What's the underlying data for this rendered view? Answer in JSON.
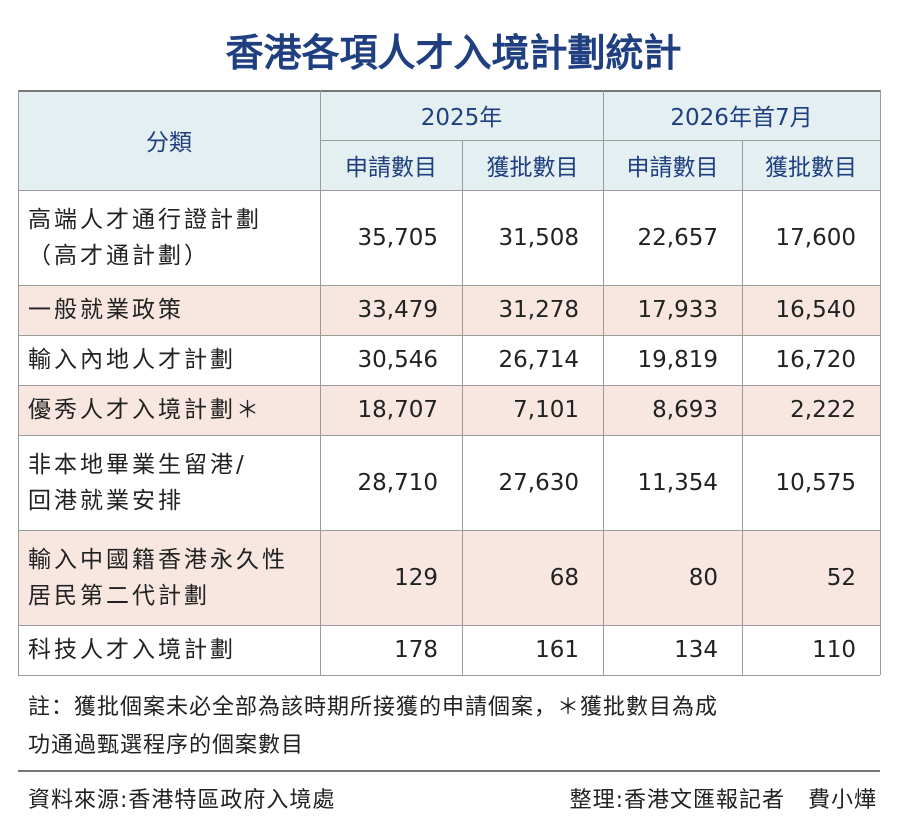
{
  "title": "香港各項人才入境計劃統計",
  "table": {
    "header": {
      "category": "分類",
      "groups": [
        "2025年",
        "2026年首7月"
      ],
      "subcolumns": [
        "申請數目",
        "獲批數目",
        "申請數目",
        "獲批數目"
      ]
    },
    "rows": [
      {
        "label": [
          "高端人才通行證計劃",
          "（高才通計劃）"
        ],
        "values": [
          "35,705",
          "31,508",
          "22,657",
          "17,600"
        ]
      },
      {
        "label": [
          "一般就業政策"
        ],
        "values": [
          "33,479",
          "31,278",
          "17,933",
          "16,540"
        ]
      },
      {
        "label": [
          "輸入內地人才計劃"
        ],
        "values": [
          "30,546",
          "26,714",
          "19,819",
          "16,720"
        ]
      },
      {
        "label": [
          "優秀人才入境計劃＊"
        ],
        "values": [
          "18,707",
          "7,101",
          "8,693",
          "2,222"
        ]
      },
      {
        "label": [
          "非本地畢業生留港/",
          "回港就業安排"
        ],
        "values": [
          "28,710",
          "27,630",
          "11,354",
          "10,575"
        ]
      },
      {
        "label": [
          "輸入中國籍香港永久性",
          "居民第二代計劃"
        ],
        "values": [
          "129",
          "68",
          "80",
          "52"
        ]
      },
      {
        "label": [
          "科技人才入境計劃"
        ],
        "values": [
          "178",
          "161",
          "134",
          "110"
        ]
      }
    ]
  },
  "note": [
    "註：獲批個案未必全部為該時期所接獲的申請個案，＊獲批數目為成",
    "功通過甄選程序的個案數目"
  ],
  "source": "資料來源:香港特區政府入境處",
  "credit": "整理:香港文匯報記者　費小燁"
}
